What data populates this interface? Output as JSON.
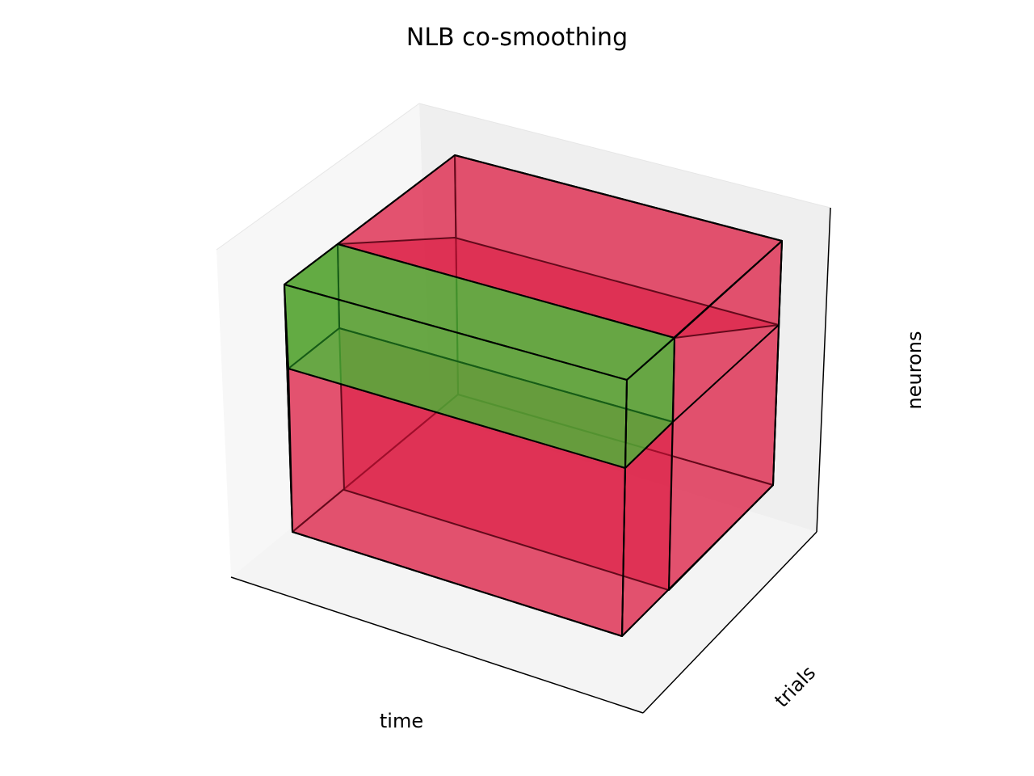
{
  "title": "NLB co-smoothing",
  "axes": {
    "x_label": "time",
    "y_label": "trials",
    "z_label": "neurons"
  },
  "colors": {
    "held_in": "#dc143c",
    "held_out": "#32cd32",
    "edge": "#000000",
    "pane_left": "#f7f7f7",
    "pane_back": "#efefef",
    "pane_floor": "#f4f4f4"
  }
}
